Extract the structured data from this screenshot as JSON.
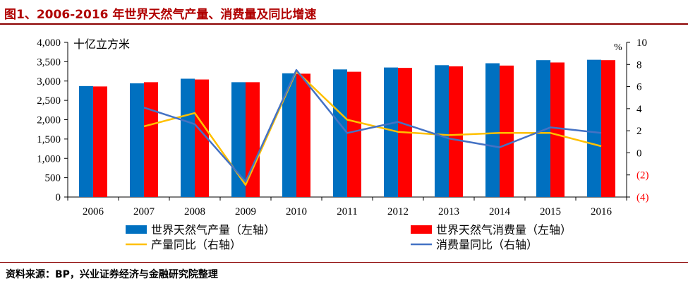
{
  "figure": {
    "title": "图1、2006-2016 年世界天然气产量、消费量及同比增速",
    "source": "资料来源：BP，兴业证券经济与金融研究院整理"
  },
  "chart_data": {
    "type": "bar",
    "categories": [
      "2006",
      "2007",
      "2008",
      "2009",
      "2010",
      "2011",
      "2012",
      "2013",
      "2014",
      "2015",
      "2016"
    ],
    "left_axis": {
      "unit": "十亿立方米",
      "ylim": [
        0,
        4000
      ],
      "ticks": [
        "0",
        "500",
        "1,000",
        "1,500",
        "2,000",
        "2,500",
        "3,000",
        "3,500",
        "4,000"
      ]
    },
    "right_axis": {
      "unit": "%",
      "ylim": [
        -4,
        10
      ],
      "ticks": [
        "(4)",
        "(2)",
        "0",
        "2",
        "4",
        "6",
        "8",
        "10"
      ]
    },
    "series": [
      {
        "name": "世界天然气产量（左轴）",
        "type": "bar",
        "axis": "left",
        "color": "#0070C0",
        "values": [
          2870,
          2940,
          3060,
          2970,
          3200,
          3300,
          3350,
          3410,
          3460,
          3540,
          3550
        ]
      },
      {
        "name": "世界天然气消费量（左轴）",
        "type": "bar",
        "axis": "left",
        "color": "#FF0000",
        "values": [
          2860,
          2970,
          3040,
          2970,
          3190,
          3240,
          3340,
          3380,
          3400,
          3480,
          3540
        ]
      },
      {
        "name": "产量同比（右轴）",
        "type": "line",
        "axis": "right",
        "color": "#FFC000",
        "values": [
          null,
          2.4,
          3.6,
          -2.9,
          7.4,
          3.0,
          1.9,
          1.6,
          1.8,
          1.8,
          0.6
        ]
      },
      {
        "name": "消费量同比（右轴）",
        "type": "line",
        "axis": "right",
        "color": "#4472C4",
        "values": [
          null,
          4.1,
          2.6,
          -2.6,
          7.5,
          1.8,
          2.8,
          1.3,
          0.5,
          2.3,
          1.8
        ]
      }
    ],
    "grid": false,
    "legend_position": "bottom"
  }
}
